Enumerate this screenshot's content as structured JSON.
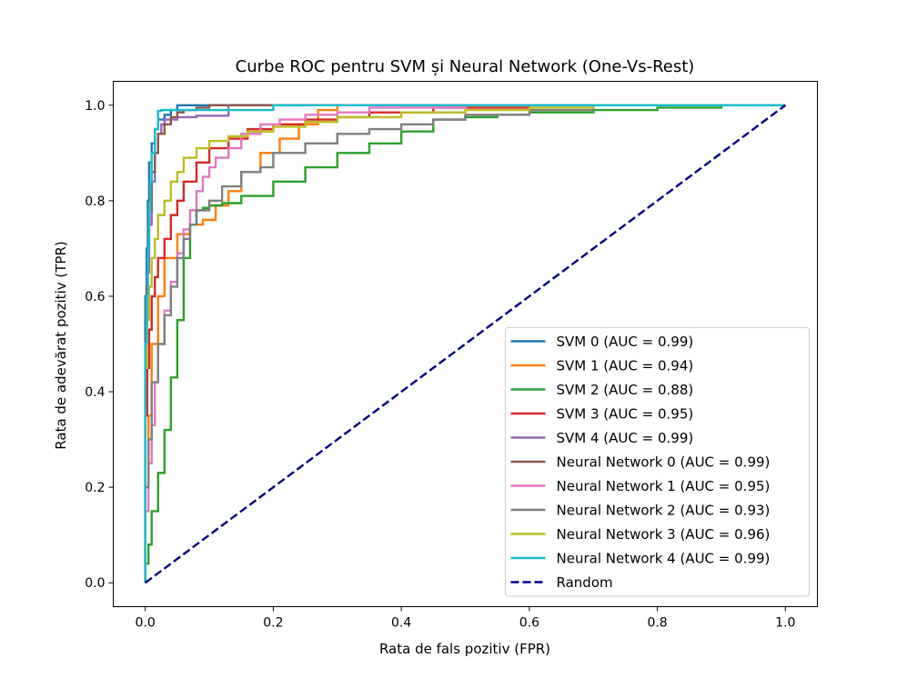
{
  "chart_data": {
    "type": "line",
    "title": "Curbe ROC pentru SVM și Neural Network (One-Vs-Rest)",
    "xlabel": "Rata de fals pozitiv (FPR)",
    "ylabel": "Rata de adevărat pozitiv (TPR)",
    "xlim": [
      -0.05,
      1.05
    ],
    "ylim": [
      -0.05,
      1.05
    ],
    "xticks": [
      "0.0",
      "0.2",
      "0.4",
      "0.6",
      "0.8",
      "1.0"
    ],
    "yticks": [
      "0.0",
      "0.2",
      "0.4",
      "0.6",
      "0.8",
      "1.0"
    ],
    "grid": false,
    "legend_position": "lower-right",
    "series": [
      {
        "name": "SVM 0 (AUC = 0.99)",
        "color": "#1f77b4",
        "dash": false,
        "x": [
          0,
          0,
          0.002,
          0.004,
          0.006,
          0.01,
          0.015,
          0.02,
          0.03,
          0.04,
          0.05,
          0.06,
          0.08,
          0.2,
          0.5,
          1.0
        ],
        "y": [
          0,
          0.45,
          0.6,
          0.7,
          0.8,
          0.88,
          0.92,
          0.95,
          0.97,
          0.98,
          0.99,
          1.0,
          1.0,
          1.0,
          1.0,
          1.0
        ]
      },
      {
        "name": "SVM 1 (AUC = 0.94)",
        "color": "#ff7f0e",
        "dash": false,
        "x": [
          0,
          0.005,
          0.01,
          0.02,
          0.03,
          0.05,
          0.07,
          0.09,
          0.11,
          0.13,
          0.15,
          0.18,
          0.21,
          0.24,
          0.27,
          0.3,
          0.4,
          0.6,
          1.0
        ],
        "y": [
          0,
          0.2,
          0.35,
          0.5,
          0.6,
          0.68,
          0.73,
          0.75,
          0.76,
          0.79,
          0.82,
          0.86,
          0.9,
          0.93,
          0.96,
          0.99,
          1.0,
          1.0,
          1.0
        ]
      },
      {
        "name": "SVM 2 (AUC = 0.88)",
        "color": "#2ca02c",
        "dash": false,
        "x": [
          0,
          0.005,
          0.01,
          0.02,
          0.03,
          0.04,
          0.05,
          0.06,
          0.07,
          0.08,
          0.09,
          0.1,
          0.12,
          0.15,
          0.2,
          0.25,
          0.3,
          0.35,
          0.4,
          0.45,
          0.5,
          0.55,
          0.6,
          0.7,
          0.8,
          0.9,
          1.0
        ],
        "y": [
          0,
          0.04,
          0.08,
          0.15,
          0.23,
          0.32,
          0.43,
          0.55,
          0.68,
          0.75,
          0.78,
          0.785,
          0.79,
          0.795,
          0.81,
          0.84,
          0.87,
          0.9,
          0.92,
          0.945,
          0.97,
          0.975,
          0.98,
          0.985,
          0.99,
          0.995,
          1.0
        ]
      },
      {
        "name": "SVM 3 (AUC = 0.95)",
        "color": "#d62728",
        "dash": false,
        "x": [
          0,
          0.003,
          0.006,
          0.01,
          0.015,
          0.02,
          0.03,
          0.04,
          0.05,
          0.06,
          0.08,
          0.1,
          0.13,
          0.16,
          0.2,
          0.25,
          0.3,
          0.35,
          0.45,
          0.6,
          1.0
        ],
        "y": [
          0,
          0.35,
          0.45,
          0.53,
          0.6,
          0.64,
          0.68,
          0.72,
          0.77,
          0.8,
          0.84,
          0.88,
          0.91,
          0.93,
          0.95,
          0.96,
          0.97,
          0.975,
          0.985,
          0.995,
          1.0
        ]
      },
      {
        "name": "SVM 4 (AUC = 0.99)",
        "color": "#9467bd",
        "dash": false,
        "x": [
          0,
          0.003,
          0.006,
          0.01,
          0.015,
          0.02,
          0.025,
          0.03,
          0.05,
          0.08,
          0.13,
          0.13,
          0.2,
          0.4,
          1.0
        ],
        "y": [
          0,
          0.5,
          0.65,
          0.75,
          0.84,
          0.9,
          0.94,
          0.96,
          0.97,
          0.975,
          0.978,
          0.99,
          1.0,
          1.0,
          1.0
        ]
      },
      {
        "name": "Neural Network 0 (AUC = 0.99)",
        "color": "#8c564b",
        "dash": false,
        "x": [
          0,
          0.002,
          0.004,
          0.006,
          0.01,
          0.015,
          0.02,
          0.03,
          0.04,
          0.05,
          0.06,
          0.08,
          0.1,
          0.15,
          0.3,
          1.0
        ],
        "y": [
          0,
          0.5,
          0.62,
          0.7,
          0.78,
          0.86,
          0.9,
          0.94,
          0.96,
          0.975,
          0.985,
          0.99,
          0.995,
          1.0,
          1.0,
          1.0
        ]
      },
      {
        "name": "Neural Network 1 (AUC = 0.95)",
        "color": "#e377c2",
        "dash": false,
        "x": [
          0,
          0.005,
          0.01,
          0.015,
          0.02,
          0.03,
          0.04,
          0.05,
          0.06,
          0.07,
          0.08,
          0.09,
          0.1,
          0.11,
          0.13,
          0.15,
          0.18,
          0.21,
          0.25,
          0.3,
          0.35,
          0.5,
          1.0
        ],
        "y": [
          0,
          0.15,
          0.25,
          0.33,
          0.42,
          0.5,
          0.57,
          0.63,
          0.69,
          0.74,
          0.78,
          0.82,
          0.85,
          0.87,
          0.89,
          0.91,
          0.94,
          0.96,
          0.97,
          0.98,
          0.985,
          0.995,
          1.0
        ]
      },
      {
        "name": "Neural Network 2 (AUC = 0.93)",
        "color": "#7f7f7f",
        "dash": false,
        "x": [
          0,
          0.005,
          0.01,
          0.02,
          0.03,
          0.04,
          0.05,
          0.06,
          0.07,
          0.08,
          0.1,
          0.12,
          0.15,
          0.18,
          0.2,
          0.25,
          0.3,
          0.35,
          0.4,
          0.45,
          0.5,
          0.6,
          0.7,
          1.0
        ],
        "y": [
          0,
          0.2,
          0.3,
          0.42,
          0.5,
          0.56,
          0.62,
          0.68,
          0.72,
          0.75,
          0.78,
          0.8,
          0.83,
          0.86,
          0.87,
          0.9,
          0.92,
          0.94,
          0.95,
          0.96,
          0.97,
          0.98,
          0.99,
          1.0
        ]
      },
      {
        "name": "Neural Network 3 (AUC = 0.96)",
        "color": "#bcbd22",
        "dash": false,
        "x": [
          0,
          0.003,
          0.006,
          0.01,
          0.015,
          0.02,
          0.03,
          0.04,
          0.05,
          0.06,
          0.08,
          0.1,
          0.13,
          0.16,
          0.2,
          0.25,
          0.3,
          0.4,
          0.5,
          0.6,
          0.7,
          1.0
        ],
        "y": [
          0,
          0.45,
          0.55,
          0.62,
          0.68,
          0.72,
          0.77,
          0.8,
          0.84,
          0.86,
          0.89,
          0.91,
          0.925,
          0.935,
          0.945,
          0.955,
          0.965,
          0.975,
          0.985,
          0.99,
          0.995,
          1.0
        ]
      },
      {
        "name": "Neural Network 4 (AUC = 0.99)",
        "color": "#17becf",
        "dash": false,
        "x": [
          0,
          0.002,
          0.004,
          0.006,
          0.008,
          0.01,
          0.015,
          0.02,
          0.025,
          0.035,
          0.06,
          0.1,
          0.2,
          0.2,
          0.3,
          1.0
        ],
        "y": [
          0,
          0.5,
          0.6,
          0.7,
          0.78,
          0.84,
          0.9,
          0.95,
          0.988,
          0.99,
          0.99,
          0.99,
          0.99,
          1.0,
          1.0,
          1.0
        ]
      },
      {
        "name": "Random",
        "color": "#000080",
        "dash": true,
        "x": [
          0,
          1
        ],
        "y": [
          0,
          1
        ]
      }
    ]
  }
}
